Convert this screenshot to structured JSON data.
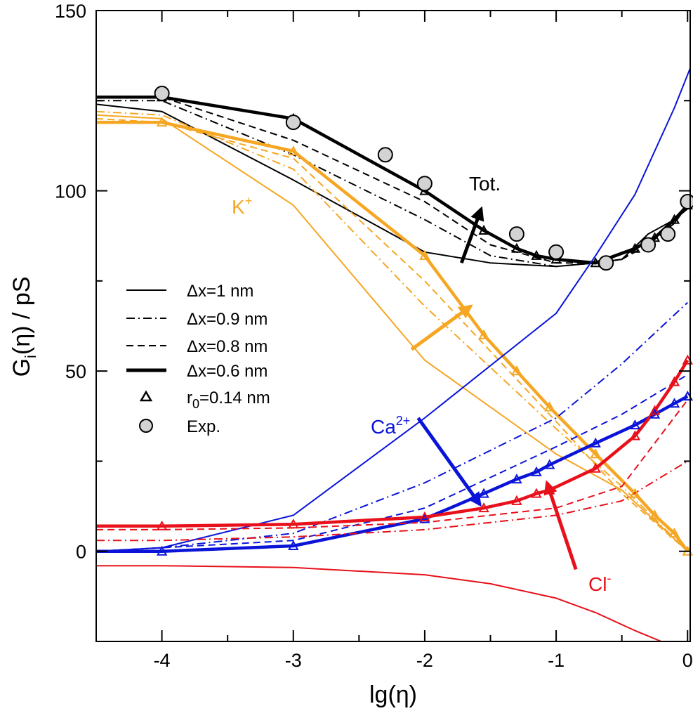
{
  "chart_data": {
    "type": "line",
    "xlabel": "lg(η)",
    "ylabel_main": "G",
    "ylabel_sub": "i",
    "ylabel_rest": "(η) / pS",
    "xlim": [
      -4.5,
      0.02
    ],
    "ylim": [
      -25,
      150
    ],
    "xticks": [
      {
        "v": -4,
        "label": "-4"
      },
      {
        "v": -3,
        "label": "-3"
      },
      {
        "v": -2,
        "label": "-2"
      },
      {
        "v": -1,
        "label": "-1"
      },
      {
        "v": 0,
        "label": "0"
      }
    ],
    "yticks": [
      {
        "v": 0,
        "label": "0"
      },
      {
        "v": 50,
        "label": "50"
      },
      {
        "v": 100,
        "label": "100"
      },
      {
        "v": 150,
        "label": "150"
      }
    ],
    "colors": {
      "total": "#000000",
      "K": "#f5a623",
      "Ca": "#0a14d8",
      "Cl": "#e8101a",
      "exp_fill": "#d3d3d3"
    },
    "series": [
      {
        "name": "Tot. Δx=1 nm",
        "ion": "total",
        "style": "thin",
        "x": [
          -4.5,
          -4,
          -3,
          -2,
          -1.5,
          -1,
          -0.7,
          -0.5,
          -0.3,
          -0.1,
          0
        ],
        "y": [
          124,
          122,
          103,
          83,
          80,
          79,
          80,
          81,
          88,
          92,
          95
        ]
      },
      {
        "name": "Tot. Δx=0.9 nm",
        "ion": "total",
        "style": "dashdot",
        "x": [
          -4.5,
          -4,
          -3,
          -2,
          -1.5,
          -1,
          -0.7,
          -0.5,
          -0.3,
          -0.1,
          0
        ],
        "y": [
          125,
          125,
          110,
          92,
          82,
          79,
          80,
          81,
          86,
          91,
          96
        ]
      },
      {
        "name": "Tot. Δx=0.8 nm",
        "ion": "total",
        "style": "dashed",
        "x": [
          -4.5,
          -4,
          -3,
          -2,
          -1.5,
          -1,
          -0.7,
          -0.5,
          -0.3,
          -0.1,
          0
        ],
        "y": [
          126,
          126,
          114,
          97,
          85,
          80,
          80,
          81,
          85,
          91,
          96
        ]
      },
      {
        "name": "Tot. Δx=0.6 nm",
        "ion": "total",
        "style": "thick",
        "markers": true,
        "x": [
          -4.5,
          -4,
          -3,
          -2,
          -1.55,
          -1.3,
          -1.15,
          -1,
          -0.7,
          -0.4,
          -0.25,
          -0.1,
          0
        ],
        "y": [
          126,
          126,
          120,
          100,
          89,
          84,
          82,
          81,
          80,
          84,
          87,
          92,
          96
        ]
      },
      {
        "name": "K+ Δx=1 nm",
        "ion": "K",
        "style": "thin",
        "x": [
          -4.5,
          -4,
          -3,
          -2,
          -1,
          -0.5,
          0
        ],
        "y": [
          121,
          120,
          96,
          53,
          27,
          17,
          0
        ]
      },
      {
        "name": "K+ Δx=0.9 nm",
        "ion": "K",
        "style": "dashdot",
        "x": [
          -4.5,
          -4,
          -3,
          -2,
          -1,
          -0.5,
          0
        ],
        "y": [
          122,
          121,
          106,
          68,
          34,
          18,
          0
        ]
      },
      {
        "name": "K+ Δx=0.8 nm",
        "ion": "K",
        "style": "dashed",
        "x": [
          -4.5,
          -4,
          -3,
          -2,
          -1,
          -0.5,
          0
        ],
        "y": [
          120,
          119,
          109,
          75,
          36,
          16,
          0
        ]
      },
      {
        "name": "K+ Δx=0.6 nm",
        "ion": "K",
        "style": "thick",
        "markers": true,
        "x": [
          -4.5,
          -4,
          -3,
          -2,
          -1.55,
          -1.3,
          -1.05,
          -0.7,
          -0.4,
          -0.25,
          -0.1,
          0
        ],
        "y": [
          119,
          119,
          111,
          82,
          60,
          50,
          40,
          27,
          16,
          10,
          5,
          0
        ]
      },
      {
        "name": "Ca2+ Δx=1 nm",
        "ion": "Ca",
        "style": "thin",
        "x": [
          -4.5,
          -4,
          -3,
          -2,
          -1,
          -0.7,
          -0.4,
          -0.1,
          0.02
        ],
        "y": [
          0,
          1,
          10,
          37,
          66,
          82,
          99,
          123,
          134
        ]
      },
      {
        "name": "Ca2+ Δx=0.9 nm",
        "ion": "Ca",
        "style": "dashdot",
        "x": [
          -4.5,
          -4,
          -3,
          -2,
          -1,
          -0.5,
          0
        ],
        "y": [
          0,
          1,
          5,
          19,
          37,
          52,
          69
        ]
      },
      {
        "name": "Ca2+ Δx=0.8 nm",
        "ion": "Ca",
        "style": "dashed",
        "x": [
          -4.5,
          -4,
          -3,
          -2,
          -1,
          -0.5,
          0
        ],
        "y": [
          0,
          1,
          3,
          12,
          29,
          38,
          49
        ]
      },
      {
        "name": "Ca2+ Δx=0.6 nm",
        "ion": "Ca",
        "style": "thick",
        "markers": true,
        "x": [
          -4.5,
          -4,
          -3,
          -2,
          -1.55,
          -1.3,
          -1.15,
          -1.05,
          -0.7,
          -0.4,
          -0.25,
          -0.1,
          0
        ],
        "y": [
          0,
          0,
          1.5,
          9,
          16,
          20,
          22,
          24,
          30,
          35,
          38,
          41,
          43
        ]
      },
      {
        "name": "Cl- Δx=1 nm",
        "ion": "Cl",
        "style": "thin",
        "x": [
          -4.5,
          -4,
          -3,
          -2,
          -1.5,
          -1,
          -0.7,
          -0.4,
          -0.2
        ],
        "y": [
          -4,
          -4,
          -4.5,
          -6.5,
          -9,
          -13,
          -17,
          -22,
          -25
        ]
      },
      {
        "name": "Cl- Δx=0.9 nm",
        "ion": "Cl",
        "style": "dashdot",
        "x": [
          -4.5,
          -4,
          -3,
          -2,
          -1,
          -0.5,
          0
        ],
        "y": [
          3,
          3,
          4,
          6,
          10,
          14,
          25
        ]
      },
      {
        "name": "Cl- Δx=0.8 nm",
        "ion": "Cl",
        "style": "dashed",
        "x": [
          -4.5,
          -4,
          -3,
          -2,
          -1,
          -0.5,
          0
        ],
        "y": [
          6,
          6,
          6.5,
          8,
          12,
          18,
          42
        ]
      },
      {
        "name": "Cl- Δx=0.6 nm",
        "ion": "Cl",
        "style": "thick",
        "markers": true,
        "x": [
          -4.5,
          -4,
          -3,
          -2,
          -1.55,
          -1.3,
          -1.15,
          -1.05,
          -0.7,
          -0.4,
          -0.25,
          -0.1,
          0
        ],
        "y": [
          7,
          7,
          7.5,
          9.5,
          12,
          14,
          16,
          17,
          23,
          32,
          39,
          47,
          53
        ]
      }
    ],
    "experimental": {
      "name": "Exp.",
      "x": [
        -4,
        -3,
        -2.3,
        -2,
        -1.3,
        -1,
        -0.62,
        -0.3,
        -0.15,
        0
      ],
      "y": [
        127,
        119,
        110,
        102,
        88,
        83,
        80,
        85,
        88,
        97
      ]
    },
    "legend": {
      "placement": "middle-left",
      "entries": [
        {
          "label": "Δx=1 nm",
          "symbol": "thin"
        },
        {
          "label": "Δx=0.9 nm",
          "symbol": "dashdot"
        },
        {
          "label": "Δx=0.8 nm",
          "symbol": "dashed"
        },
        {
          "label": "Δx=0.6 nm",
          "symbol": "thick"
        },
        {
          "label_main": "r",
          "label_sub": "0",
          "label_rest": "=0.14 nm",
          "symbol": "triangle"
        },
        {
          "label": "Exp.",
          "symbol": "circle"
        }
      ]
    },
    "annotations": [
      {
        "text": "Tot.",
        "ion": "total"
      },
      {
        "text": "K",
        "sup": "+",
        "ion": "K"
      },
      {
        "text": "Ca",
        "sup": "2+",
        "ion": "Ca"
      },
      {
        "text": "Cl",
        "sup": "-",
        "ion": "Cl"
      }
    ],
    "arrows": [
      {
        "ion": "total",
        "from": [
          -1.72,
          80
        ],
        "to": [
          -1.57,
          95
        ]
      },
      {
        "ion": "K",
        "from": [
          -2.1,
          56
        ],
        "to": [
          -1.65,
          68
        ]
      },
      {
        "ion": "Ca",
        "from": [
          -2.05,
          37
        ],
        "to": [
          -1.58,
          13
        ]
      },
      {
        "ion": "Cl",
        "from": [
          -0.85,
          -5
        ],
        "to": [
          -1.07,
          19
        ]
      }
    ]
  }
}
